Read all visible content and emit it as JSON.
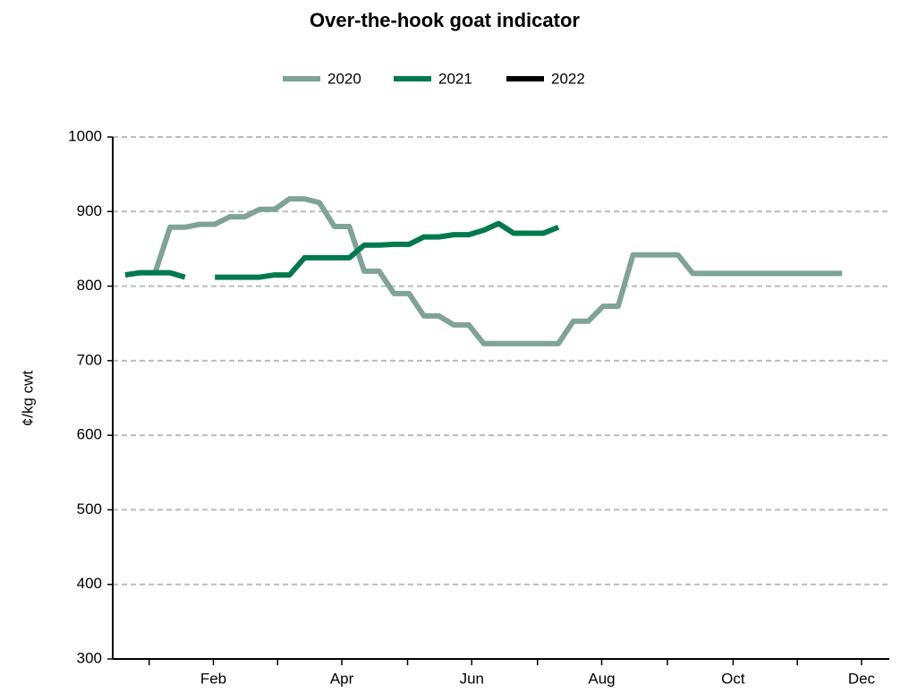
{
  "chart_data": {
    "type": "line",
    "title": "Over-the-hook goat indicator",
    "ylabel": "¢/kg cwt",
    "x": [
      1,
      2,
      3,
      4,
      5,
      6,
      7,
      8,
      9,
      10,
      11,
      12,
      13,
      14,
      15,
      16,
      17,
      18,
      19,
      20,
      21,
      22,
      23,
      24,
      25,
      26,
      27,
      28,
      29,
      30,
      31,
      32,
      33,
      34,
      35,
      36,
      37,
      38,
      39,
      40,
      41,
      42,
      43,
      44,
      45,
      46,
      47,
      48,
      49
    ],
    "xlim": [
      0.16,
      52.16
    ],
    "xticks": [
      {
        "value": 2.6,
        "label": null
      },
      {
        "value": 6.9,
        "label": "Feb"
      },
      {
        "value": 11.2,
        "label": null
      },
      {
        "value": 15.5,
        "label": "Apr"
      },
      {
        "value": 19.9,
        "label": null
      },
      {
        "value": 24.2,
        "label": "Jun"
      },
      {
        "value": 28.6,
        "label": null
      },
      {
        "value": 32.9,
        "label": "Aug"
      },
      {
        "value": 37.3,
        "label": null
      },
      {
        "value": 41.7,
        "label": "Oct"
      },
      {
        "value": 46.0,
        "label": null
      },
      {
        "value": 50.3,
        "label": "Dec"
      }
    ],
    "ylim": [
      300,
      1000
    ],
    "yticks": [
      300,
      400,
      500,
      600,
      700,
      800,
      900,
      1000
    ],
    "grid": true,
    "legend": "top",
    "series": [
      {
        "name": "2020",
        "color": "#7fa394",
        "values": [
          815,
          818,
          818,
          879,
          879,
          883,
          883,
          893,
          893,
          903,
          903,
          917,
          917,
          912,
          880,
          880,
          820,
          820,
          790,
          790,
          760,
          760,
          748,
          748,
          723,
          723,
          723,
          723,
          723,
          723,
          753,
          753,
          773,
          773,
          842,
          842,
          842,
          842,
          817,
          817,
          817,
          817,
          817,
          817,
          817,
          817,
          817,
          817,
          817
        ]
      },
      {
        "name": "2021",
        "color": "#007a4d",
        "values": [
          815,
          818,
          818,
          818,
          812,
          null,
          812,
          812,
          812,
          812,
          815,
          815,
          838,
          838,
          838,
          838,
          855,
          855,
          856,
          856,
          866,
          866,
          869,
          869,
          875,
          884,
          871,
          871,
          871,
          879,
          null,
          null,
          null,
          null,
          null,
          null,
          null,
          null,
          null,
          null,
          null,
          null,
          null,
          null,
          null,
          null,
          null,
          null,
          null
        ]
      },
      {
        "name": "2022",
        "color": "#000000",
        "values": [
          null,
          null,
          null,
          null,
          null,
          null,
          null,
          null,
          null,
          null,
          null,
          null,
          null,
          null,
          null,
          null,
          null,
          null,
          null,
          null,
          null,
          null,
          null,
          null,
          null,
          null,
          null,
          null,
          null,
          null,
          null,
          null,
          null,
          null,
          null,
          null,
          null,
          null,
          null,
          null,
          null,
          null,
          null,
          null,
          null,
          null,
          null,
          null,
          null
        ]
      }
    ]
  }
}
